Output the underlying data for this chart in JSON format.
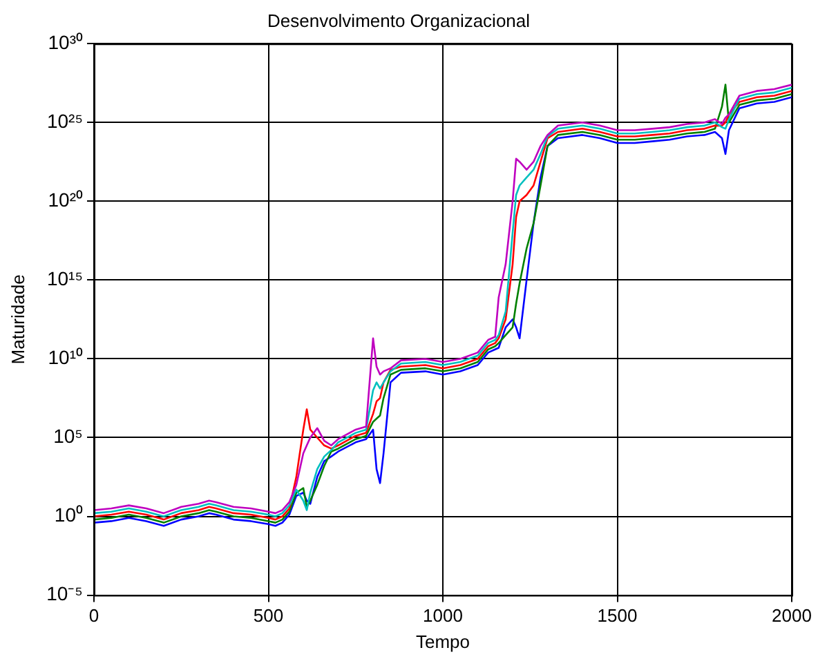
{
  "chart_data": {
    "type": "line",
    "title": "Desenvolvimento Organizacional",
    "xlabel": "Tempo",
    "ylabel": "Maturidade",
    "log": "y",
    "grid": true,
    "marker": "none",
    "line_style": "solid",
    "xlim": [
      0,
      2000
    ],
    "xticks": [
      0,
      500,
      1000,
      1500,
      2000
    ],
    "ylim": [
      1e-05,
      1e+30
    ],
    "yticks": [
      {
        "value": 1e-05,
        "label": "10⁻⁵"
      },
      {
        "value": 1,
        "label": "10⁰"
      },
      {
        "value": 100000.0,
        "label": "10⁵"
      },
      {
        "value": 10000000000.0,
        "label": "10¹⁰"
      },
      {
        "value": 1000000000000000.0,
        "label": "10¹⁵"
      },
      {
        "value": 1e+20,
        "label": "10²⁰"
      },
      {
        "value": 1e+25,
        "label": "10²⁵"
      },
      {
        "value": 1e+30,
        "label": "10³⁰"
      }
    ],
    "x": [
      0,
      50,
      100,
      150,
      200,
      250,
      300,
      330,
      350,
      400,
      450,
      500,
      520,
      540,
      560,
      580,
      600,
      610,
      620,
      640,
      660,
      680,
      700,
      750,
      780,
      800,
      810,
      820,
      830,
      850,
      880,
      950,
      1000,
      1050,
      1100,
      1130,
      1150,
      1160,
      1180,
      1200,
      1210,
      1220,
      1240,
      1260,
      1280,
      1300,
      1330,
      1400,
      1450,
      1500,
      1550,
      1600,
      1650,
      1700,
      1750,
      1780,
      1800,
      1810,
      1820,
      1850,
      1900,
      1950,
      2000
    ],
    "series": [
      {
        "color": "#0000ff",
        "values": [
          0.4,
          0.5,
          0.8,
          0.5,
          0.25,
          0.63,
          1,
          1.6,
          1.3,
          0.63,
          0.5,
          0.32,
          0.25,
          0.4,
          1.3,
          20,
          32,
          10,
          6.3,
          320,
          3200,
          6300,
          13000.0,
          50000.0,
          80000.0,
          320000.0,
          1000.0,
          130,
          10000.0,
          320000000.0,
          1300000000.0,
          1600000000.0,
          1000000000.0,
          1600000000.0,
          4000000000.0,
          25000000000.0,
          40000000000.0,
          50000000000.0,
          1000000000000.0,
          3200000000000.0,
          1000000000000.0,
          200000000000.0,
          1000000000000000.0,
          4e+18,
          3.2e+21,
          3.2e+23,
          1e+24,
          1.6e+24,
          1e+24,
          5e+23,
          5e+23,
          6.3e+23,
          8e+23,
          1.3e+24,
          1.6e+24,
          2.5e+24,
          1e+24,
          1e+23,
          3.2e+24,
          8e+25,
          1.6e+26,
          2e+26,
          4e+26
        ]
      },
      {
        "color": "#008000",
        "values": [
          0.63,
          0.8,
          1.3,
          0.8,
          0.4,
          1,
          1.6,
          2.5,
          2,
          1,
          0.8,
          0.5,
          0.4,
          0.63,
          2,
          32,
          63,
          4,
          10,
          100,
          1600,
          13000.0,
          20000.0,
          80000.0,
          130000.0,
          1000000.0,
          1600000.0,
          2500000.0,
          32000000.0,
          1000000000.0,
          2000000000.0,
          2500000000.0,
          1600000000.0,
          2500000000.0,
          6300000000.0,
          40000000000.0,
          63000000000.0,
          100000000000.0,
          320000000000.0,
          1000000000000.0,
          32000000000000.0,
          630000000000000.0,
          1e+17,
          4e+18,
          1e+21,
          3.2e+23,
          1.6e+24,
          2.5e+24,
          1.6e+24,
          8e+23,
          8e+23,
          1e+24,
          1.3e+24,
          2e+24,
          2.5e+24,
          4e+24,
          1e+26,
          2.5e+27,
          1e+25,
          1.3e+26,
          2.5e+26,
          3.2e+26,
          6.3e+26
        ]
      },
      {
        "color": "#ff0000",
        "values": [
          1,
          1.3,
          2,
          1.3,
          0.63,
          1.6,
          2.5,
          4,
          3.2,
          1.6,
          1.3,
          0.8,
          0.63,
          1,
          3.2,
          320,
          320000.0,
          6300000.0,
          320000.0,
          100000.0,
          32000.0,
          20000.0,
          32000.0,
          130000.0,
          200000.0,
          3200000.0,
          20000000.0,
          32000000.0,
          320000000.0,
          2000000000.0,
          3200000000.0,
          4000000000.0,
          2500000000.0,
          4000000000.0,
          10000000000.0,
          63000000000.0,
          100000000000.0,
          200000000000.0,
          3200000000000.0,
          1e+16,
          1e+19,
          1e+20,
          2.5e+20,
          1e+21,
          3.2e+22,
          1e+24,
          2.5e+24,
          4e+24,
          2.5e+24,
          1.3e+24,
          1.3e+24,
          1.6e+24,
          2e+24,
          3.2e+24,
          4e+24,
          6.3e+24,
          6.3e+24,
          1e+25,
          3.2e+25,
          2e+26,
          4e+26,
          5e+26,
          1e+27
        ]
      },
      {
        "color": "#00bfbf",
        "values": [
          1.6,
          2,
          3.2,
          2,
          1,
          2.5,
          4,
          6.3,
          5,
          2.5,
          2,
          1.3,
          1,
          1.6,
          5,
          50,
          10,
          2.5,
          32,
          1000.0,
          6300.0,
          16000.0,
          50000.0,
          200000.0,
          320000.0,
          100000000.0,
          320000000.0,
          130000000.0,
          320000000.0,
          1600000000.0,
          5000000000.0,
          6300000000.0,
          4000000000.0,
          6300000000.0,
          16000000000.0,
          100000000000.0,
          160000000000.0,
          320000000000.0,
          10000000000000.0,
          1e+18,
          2.5e+20,
          1e+21,
          3.2e+21,
          1e+22,
          1e+23,
          1.3e+24,
          4e+24,
          6.3e+24,
          4e+24,
          2e+24,
          2e+24,
          2.5e+24,
          3.2e+24,
          5e+24,
          6.3e+24,
          1e+25,
          5e+24,
          4e+24,
          1.6e+25,
          3.2e+26,
          6.3e+26,
          8e+26,
          1.6e+27
        ]
      },
      {
        "color": "#bf00bf",
        "values": [
          2.5,
          3.2,
          5,
          3.2,
          1.6,
          4,
          6.3,
          10,
          8,
          4,
          3.2,
          2,
          1.6,
          2.5,
          8,
          100,
          10000.0,
          32000.0,
          100000.0,
          400000.0,
          63000.0,
          32000.0,
          80000.0,
          320000.0,
          500000.0,
          200000000000.0,
          3200000000.0,
          1000000000.0,
          1600000000.0,
          2500000000.0,
          8000000000.0,
          10000000000.0,
          6300000000.0,
          10000000000.0,
          25000000000.0,
          160000000000.0,
          250000000000.0,
          80000000000000.0,
          1e+16,
          1e+20,
          5e+22,
          3.2e+22,
          1e+22,
          3.2e+22,
          3.2e+23,
          1.6e+24,
          6.3e+24,
          1e+25,
          6.3e+24,
          3.2e+24,
          3.2e+24,
          4e+24,
          5e+24,
          8e+24,
          1e+25,
          1.6e+25,
          8e+24,
          2e+25,
          3.2e+25,
          5e+26,
          1e+27,
          1.3e+27,
          2.5e+27
        ]
      }
    ]
  }
}
